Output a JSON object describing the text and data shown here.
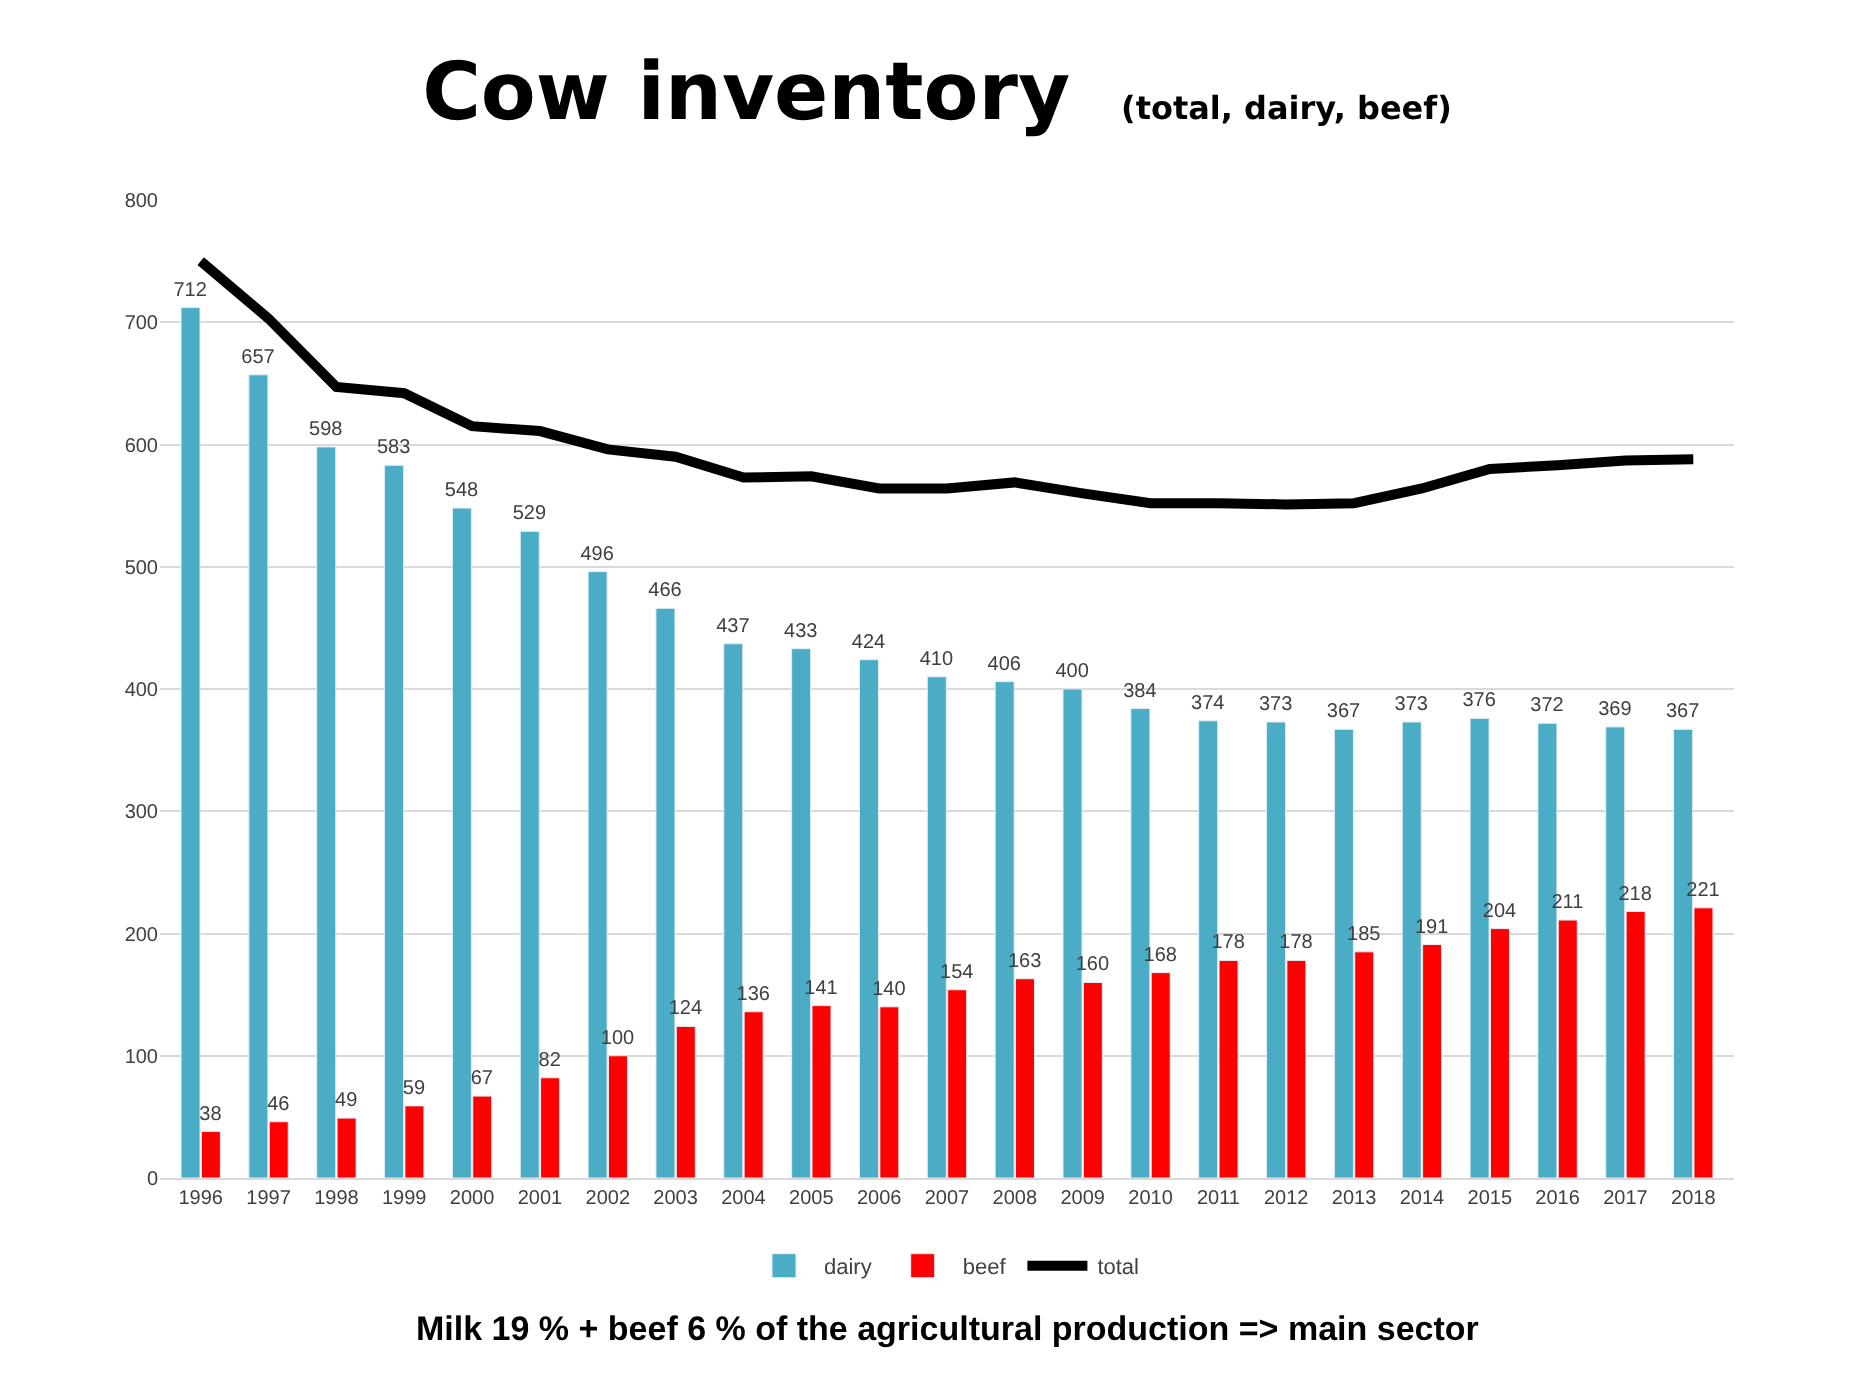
{
  "chart_data": {
    "type": "bar",
    "title": "Cow inventory",
    "subtitle": "(total, dairy, beef)",
    "categories": [
      "1996",
      "1997",
      "1998",
      "1999",
      "2000",
      "2001",
      "2002",
      "2003",
      "2004",
      "2005",
      "2006",
      "2007",
      "2008",
      "2009",
      "2010",
      "2011",
      "2012",
      "2013",
      "2014",
      "2015",
      "2016",
      "2017",
      "2018"
    ],
    "series": [
      {
        "name": "dairy",
        "color": "#4bacc6",
        "values": [
          712,
          657,
          598,
          583,
          548,
          529,
          496,
          466,
          437,
          433,
          424,
          410,
          406,
          400,
          384,
          374,
          373,
          367,
          373,
          376,
          372,
          369,
          367
        ],
        "value_labels": [
          "712",
          "657",
          "598",
          "583",
          "548",
          "529",
          "496",
          "466",
          "437",
          "433",
          "424",
          "410",
          "406",
          "400",
          "384",
          "374",
          "373",
          "367",
          "373",
          "376",
          "372",
          "369",
          "367"
        ]
      },
      {
        "name": "beef",
        "color": "#ff0000",
        "values": [
          38,
          46,
          49,
          59,
          67,
          82,
          100,
          124,
          136,
          141,
          140,
          154,
          163,
          160,
          168,
          178,
          178,
          185,
          191,
          204,
          211,
          218,
          221
        ],
        "value_labels": [
          "38",
          "46",
          "49",
          "59",
          "67",
          "82",
          "100",
          "124",
          "136",
          "141",
          "140",
          "154",
          "163",
          "160",
          "168",
          "178",
          "178",
          "185",
          "191",
          "204",
          "211",
          "218",
          "221"
        ]
      },
      {
        "name": "total",
        "color": "#000000",
        "type": "line",
        "values": [
          750,
          703,
          647,
          642,
          615,
          611,
          596,
          590,
          573,
          574,
          564,
          564,
          569,
          560,
          552,
          552,
          551,
          552,
          564,
          580,
          583,
          587,
          588
        ]
      }
    ],
    "ylim": [
      0,
      800
    ],
    "yticks": [
      0,
      100,
      200,
      300,
      400,
      500,
      600,
      700,
      800
    ],
    "grid": "y",
    "legend": "bottom",
    "marker": "none",
    "annotations": [
      "Milk 19 % + beef 6 % of the agricultural production => main sector"
    ]
  }
}
